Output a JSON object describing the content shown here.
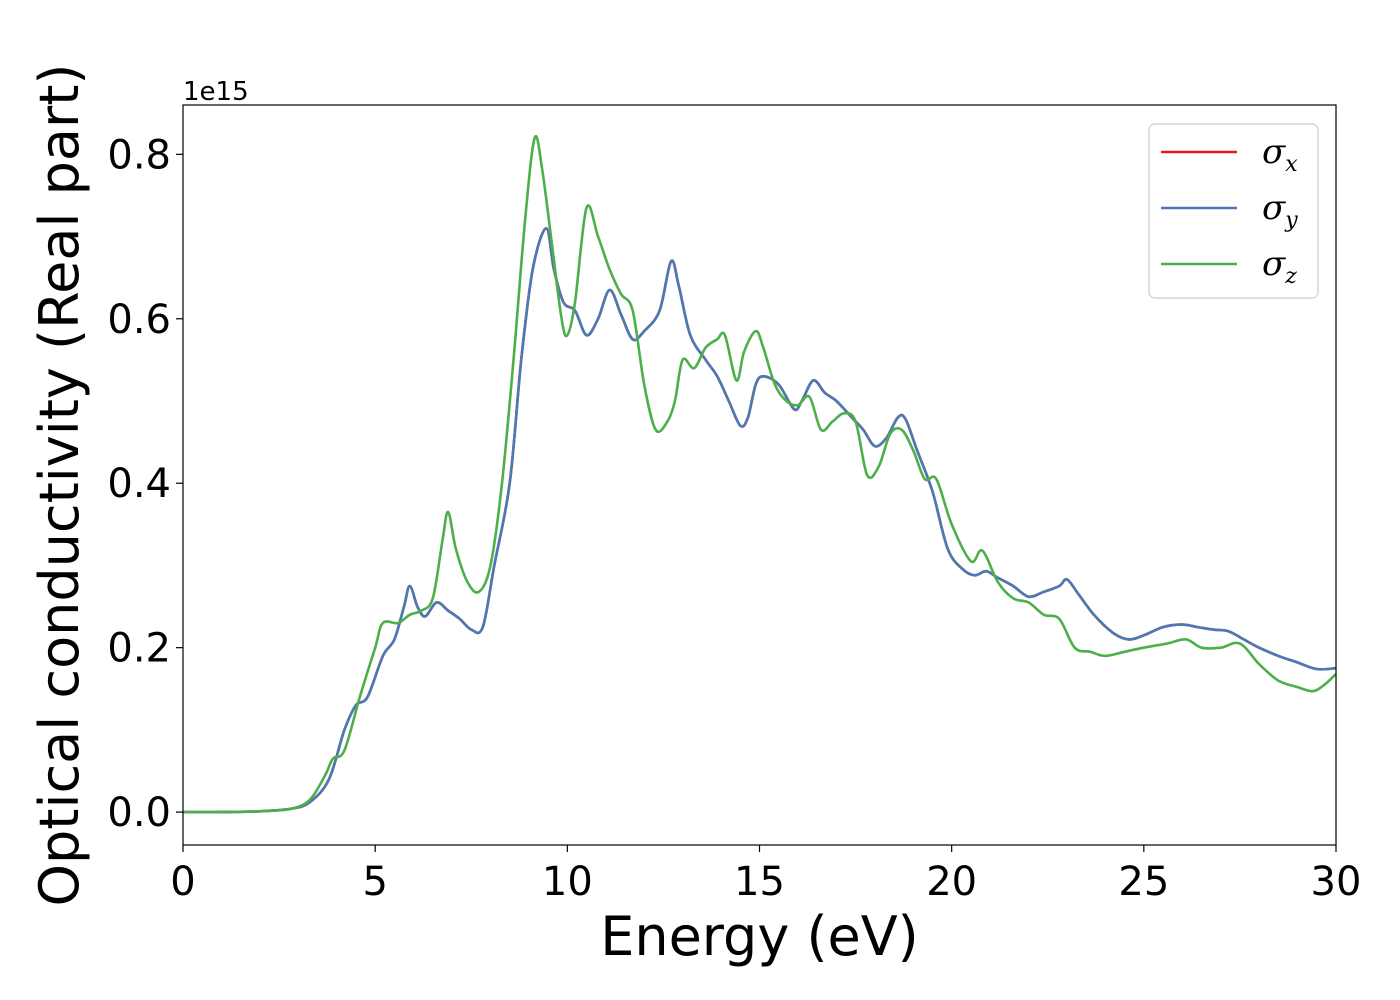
{
  "chart_data": {
    "type": "line",
    "xlabel": "Energy (eV)",
    "ylabel": "Optical conductivity (Real part)",
    "y_offset_label": "1e15",
    "xlim": [
      0,
      30
    ],
    "ylim": [
      -0.04,
      0.86
    ],
    "xticks": [
      0,
      5,
      10,
      15,
      20,
      25,
      30
    ],
    "yticks": [
      0.0,
      0.2,
      0.4,
      0.6,
      0.8
    ],
    "xtick_labels": [
      "0",
      "5",
      "10",
      "15",
      "20",
      "25",
      "30"
    ],
    "ytick_labels": [
      "0.0",
      "0.2",
      "0.4",
      "0.6",
      "0.8"
    ],
    "legend_position": "top-right",
    "grid": false,
    "series": [
      {
        "name": "σx",
        "legend_main": "σ",
        "legend_sub": "x",
        "color": "#e41a1c",
        "points": [
          [
            0,
            0
          ],
          [
            1,
            0
          ],
          [
            2,
            0.001
          ],
          [
            2.8,
            0.004
          ],
          [
            3.3,
            0.012
          ],
          [
            3.8,
            0.04
          ],
          [
            4.2,
            0.1
          ],
          [
            4.5,
            0.13
          ],
          [
            4.8,
            0.14
          ],
          [
            5.2,
            0.19
          ],
          [
            5.5,
            0.21
          ],
          [
            5.75,
            0.25
          ],
          [
            5.9,
            0.275
          ],
          [
            6.1,
            0.25
          ],
          [
            6.3,
            0.238
          ],
          [
            6.6,
            0.255
          ],
          [
            6.9,
            0.245
          ],
          [
            7.2,
            0.235
          ],
          [
            7.5,
            0.222
          ],
          [
            7.8,
            0.225
          ],
          [
            8.1,
            0.3
          ],
          [
            8.5,
            0.4
          ],
          [
            8.8,
            0.55
          ],
          [
            9.1,
            0.66
          ],
          [
            9.45,
            0.71
          ],
          [
            9.65,
            0.66
          ],
          [
            9.9,
            0.62
          ],
          [
            10.2,
            0.61
          ],
          [
            10.5,
            0.58
          ],
          [
            10.8,
            0.6
          ],
          [
            11.1,
            0.635
          ],
          [
            11.4,
            0.605
          ],
          [
            11.7,
            0.575
          ],
          [
            12.0,
            0.585
          ],
          [
            12.4,
            0.61
          ],
          [
            12.7,
            0.67
          ],
          [
            12.9,
            0.64
          ],
          [
            13.2,
            0.58
          ],
          [
            13.6,
            0.55
          ],
          [
            13.9,
            0.53
          ],
          [
            14.2,
            0.5
          ],
          [
            14.5,
            0.47
          ],
          [
            14.7,
            0.48
          ],
          [
            14.9,
            0.52
          ],
          [
            15.1,
            0.53
          ],
          [
            15.5,
            0.52
          ],
          [
            15.9,
            0.49
          ],
          [
            16.1,
            0.5
          ],
          [
            16.4,
            0.525
          ],
          [
            16.7,
            0.51
          ],
          [
            17.0,
            0.5
          ],
          [
            17.4,
            0.48
          ],
          [
            17.7,
            0.465
          ],
          [
            18.0,
            0.445
          ],
          [
            18.3,
            0.455
          ],
          [
            18.6,
            0.48
          ],
          [
            18.8,
            0.478
          ],
          [
            19.1,
            0.44
          ],
          [
            19.5,
            0.39
          ],
          [
            19.9,
            0.32
          ],
          [
            20.3,
            0.295
          ],
          [
            20.6,
            0.288
          ],
          [
            20.9,
            0.293
          ],
          [
            21.2,
            0.285
          ],
          [
            21.6,
            0.275
          ],
          [
            22.0,
            0.262
          ],
          [
            22.4,
            0.268
          ],
          [
            22.8,
            0.275
          ],
          [
            23.0,
            0.283
          ],
          [
            23.3,
            0.265
          ],
          [
            23.7,
            0.24
          ],
          [
            24.2,
            0.218
          ],
          [
            24.6,
            0.21
          ],
          [
            25.0,
            0.215
          ],
          [
            25.5,
            0.225
          ],
          [
            26.0,
            0.228
          ],
          [
            26.4,
            0.225
          ],
          [
            26.8,
            0.222
          ],
          [
            27.2,
            0.22
          ],
          [
            27.6,
            0.21
          ],
          [
            28.0,
            0.2
          ],
          [
            28.5,
            0.19
          ],
          [
            29.0,
            0.182
          ],
          [
            29.5,
            0.174
          ],
          [
            30.0,
            0.175
          ]
        ]
      },
      {
        "name": "σy",
        "legend_main": "σ",
        "legend_sub": "y",
        "color": "#4a7ab4",
        "points": [
          [
            0,
            0
          ],
          [
            1,
            0
          ],
          [
            2,
            0.001
          ],
          [
            2.8,
            0.004
          ],
          [
            3.3,
            0.012
          ],
          [
            3.8,
            0.04
          ],
          [
            4.2,
            0.1
          ],
          [
            4.5,
            0.13
          ],
          [
            4.8,
            0.14
          ],
          [
            5.2,
            0.19
          ],
          [
            5.5,
            0.21
          ],
          [
            5.75,
            0.25
          ],
          [
            5.9,
            0.275
          ],
          [
            6.1,
            0.25
          ],
          [
            6.3,
            0.238
          ],
          [
            6.6,
            0.255
          ],
          [
            6.9,
            0.245
          ],
          [
            7.2,
            0.235
          ],
          [
            7.5,
            0.222
          ],
          [
            7.8,
            0.225
          ],
          [
            8.1,
            0.3
          ],
          [
            8.5,
            0.4
          ],
          [
            8.8,
            0.55
          ],
          [
            9.1,
            0.66
          ],
          [
            9.45,
            0.71
          ],
          [
            9.65,
            0.66
          ],
          [
            9.9,
            0.62
          ],
          [
            10.2,
            0.61
          ],
          [
            10.5,
            0.58
          ],
          [
            10.8,
            0.6
          ],
          [
            11.1,
            0.635
          ],
          [
            11.4,
            0.605
          ],
          [
            11.7,
            0.575
          ],
          [
            12.0,
            0.585
          ],
          [
            12.4,
            0.61
          ],
          [
            12.7,
            0.67
          ],
          [
            12.9,
            0.64
          ],
          [
            13.2,
            0.58
          ],
          [
            13.6,
            0.55
          ],
          [
            13.9,
            0.53
          ],
          [
            14.2,
            0.5
          ],
          [
            14.5,
            0.47
          ],
          [
            14.7,
            0.48
          ],
          [
            14.9,
            0.52
          ],
          [
            15.1,
            0.53
          ],
          [
            15.5,
            0.52
          ],
          [
            15.9,
            0.49
          ],
          [
            16.1,
            0.5
          ],
          [
            16.4,
            0.525
          ],
          [
            16.7,
            0.51
          ],
          [
            17.0,
            0.5
          ],
          [
            17.4,
            0.48
          ],
          [
            17.7,
            0.465
          ],
          [
            18.0,
            0.445
          ],
          [
            18.3,
            0.455
          ],
          [
            18.6,
            0.48
          ],
          [
            18.8,
            0.478
          ],
          [
            19.1,
            0.44
          ],
          [
            19.5,
            0.39
          ],
          [
            19.9,
            0.32
          ],
          [
            20.3,
            0.295
          ],
          [
            20.6,
            0.288
          ],
          [
            20.9,
            0.293
          ],
          [
            21.2,
            0.285
          ],
          [
            21.6,
            0.275
          ],
          [
            22.0,
            0.262
          ],
          [
            22.4,
            0.268
          ],
          [
            22.8,
            0.275
          ],
          [
            23.0,
            0.283
          ],
          [
            23.3,
            0.265
          ],
          [
            23.7,
            0.24
          ],
          [
            24.2,
            0.218
          ],
          [
            24.6,
            0.21
          ],
          [
            25.0,
            0.215
          ],
          [
            25.5,
            0.225
          ],
          [
            26.0,
            0.228
          ],
          [
            26.4,
            0.225
          ],
          [
            26.8,
            0.222
          ],
          [
            27.2,
            0.22
          ],
          [
            27.6,
            0.21
          ],
          [
            28.0,
            0.2
          ],
          [
            28.5,
            0.19
          ],
          [
            29.0,
            0.182
          ],
          [
            29.5,
            0.174
          ],
          [
            30.0,
            0.175
          ]
        ]
      },
      {
        "name": "σz",
        "legend_main": "σ",
        "legend_sub": "z",
        "color": "#4daf4a",
        "points": [
          [
            0,
            0
          ],
          [
            1,
            0
          ],
          [
            2,
            0.001
          ],
          [
            2.8,
            0.004
          ],
          [
            3.3,
            0.015
          ],
          [
            3.7,
            0.045
          ],
          [
            3.9,
            0.065
          ],
          [
            4.2,
            0.075
          ],
          [
            4.6,
            0.14
          ],
          [
            5.0,
            0.2
          ],
          [
            5.2,
            0.23
          ],
          [
            5.6,
            0.23
          ],
          [
            5.9,
            0.24
          ],
          [
            6.2,
            0.245
          ],
          [
            6.5,
            0.26
          ],
          [
            6.75,
            0.33
          ],
          [
            6.9,
            0.365
          ],
          [
            7.1,
            0.32
          ],
          [
            7.4,
            0.28
          ],
          [
            7.7,
            0.268
          ],
          [
            8.0,
            0.3
          ],
          [
            8.3,
            0.4
          ],
          [
            8.6,
            0.55
          ],
          [
            8.9,
            0.72
          ],
          [
            9.15,
            0.82
          ],
          [
            9.35,
            0.78
          ],
          [
            9.6,
            0.69
          ],
          [
            9.85,
            0.6
          ],
          [
            10.0,
            0.58
          ],
          [
            10.2,
            0.62
          ],
          [
            10.5,
            0.735
          ],
          [
            10.8,
            0.7
          ],
          [
            11.1,
            0.66
          ],
          [
            11.4,
            0.63
          ],
          [
            11.7,
            0.61
          ],
          [
            12.0,
            0.52
          ],
          [
            12.3,
            0.465
          ],
          [
            12.6,
            0.475
          ],
          [
            12.8,
            0.5
          ],
          [
            13.0,
            0.55
          ],
          [
            13.3,
            0.54
          ],
          [
            13.6,
            0.565
          ],
          [
            13.9,
            0.575
          ],
          [
            14.1,
            0.58
          ],
          [
            14.4,
            0.525
          ],
          [
            14.6,
            0.56
          ],
          [
            14.9,
            0.585
          ],
          [
            15.1,
            0.565
          ],
          [
            15.4,
            0.52
          ],
          [
            15.7,
            0.5
          ],
          [
            16.0,
            0.495
          ],
          [
            16.3,
            0.505
          ],
          [
            16.6,
            0.465
          ],
          [
            16.9,
            0.475
          ],
          [
            17.2,
            0.485
          ],
          [
            17.5,
            0.475
          ],
          [
            17.8,
            0.41
          ],
          [
            18.1,
            0.42
          ],
          [
            18.4,
            0.46
          ],
          [
            18.7,
            0.465
          ],
          [
            19.0,
            0.44
          ],
          [
            19.3,
            0.405
          ],
          [
            19.6,
            0.405
          ],
          [
            20.0,
            0.35
          ],
          [
            20.5,
            0.305
          ],
          [
            20.8,
            0.318
          ],
          [
            21.2,
            0.28
          ],
          [
            21.6,
            0.26
          ],
          [
            22.0,
            0.255
          ],
          [
            22.4,
            0.24
          ],
          [
            22.8,
            0.235
          ],
          [
            23.2,
            0.2
          ],
          [
            23.6,
            0.195
          ],
          [
            24.0,
            0.19
          ],
          [
            24.5,
            0.195
          ],
          [
            25.0,
            0.2
          ],
          [
            25.6,
            0.205
          ],
          [
            26.1,
            0.21
          ],
          [
            26.5,
            0.2
          ],
          [
            27.0,
            0.2
          ],
          [
            27.5,
            0.205
          ],
          [
            28.0,
            0.18
          ],
          [
            28.5,
            0.16
          ],
          [
            29.0,
            0.152
          ],
          [
            29.4,
            0.147
          ],
          [
            29.7,
            0.155
          ],
          [
            30.0,
            0.168
          ]
        ]
      }
    ]
  }
}
